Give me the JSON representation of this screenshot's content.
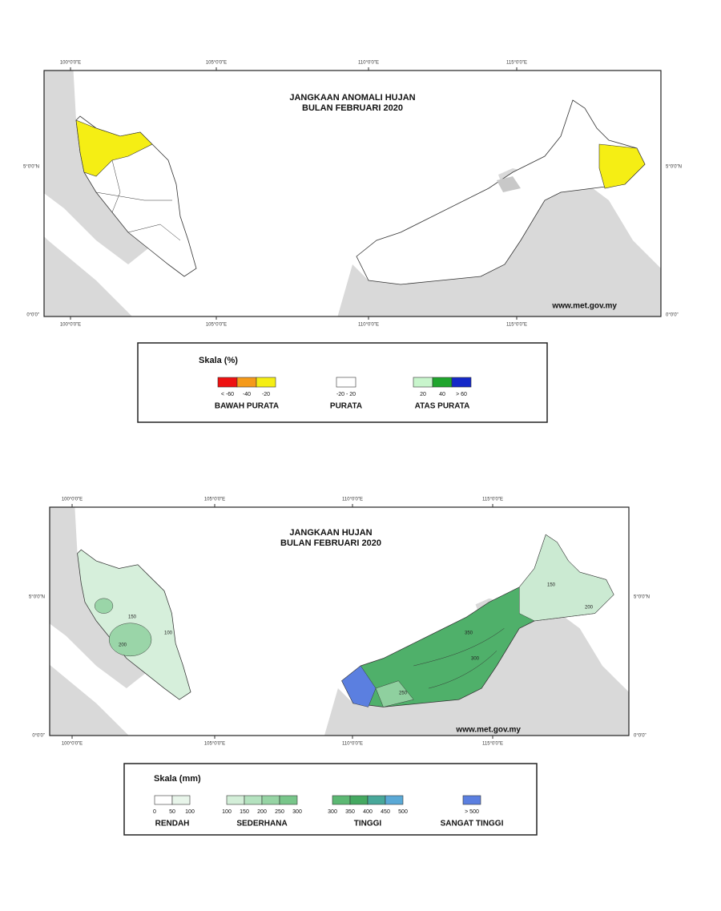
{
  "maps": [
    {
      "title": [
        "JANGKAAN ANOMALI HUJAN",
        "BULAN FEBRUARI 2020"
      ],
      "url": "www.met.gov.my",
      "lon_labels": [
        "100°0'0\"E",
        "105°0'0\"E",
        "110°0'0\"E",
        "115°0'0\"E"
      ],
      "lat_labels": [
        "5°0'0\"N",
        "0°0'0\""
      ],
      "legend": {
        "title": "Skala (%)",
        "groups": [
          {
            "name": "BAWAH PURATA",
            "colors": [
              "#ee1111",
              "#f59a1a",
              "#f5ee14"
            ],
            "labels": [
              "< -60",
              "-40",
              "-20"
            ]
          },
          {
            "name": "PURATA",
            "colors": [
              "#ffffff"
            ],
            "labels": [
              "-20 - 20"
            ]
          },
          {
            "name": "ATAS PURATA",
            "colors": [
              "#c8f5cc",
              "#1fa52d",
              "#1428c8"
            ],
            "labels": [
              "20",
              "40",
              "> 60"
            ]
          }
        ]
      }
    },
    {
      "title": [
        "JANGKAAN HUJAN",
        "BULAN FEBRUARI 2020"
      ],
      "url": "www.met.gov.my",
      "lon_labels": [
        "100°0'0\"E",
        "105°0'0\"E",
        "110°0'0\"E",
        "115°0'0\"E"
      ],
      "lat_labels": [
        "5°0'0\"N",
        "0°0'0\""
      ],
      "contour_labels": [
        "100",
        "150",
        "200",
        "250",
        "300",
        "350",
        "150",
        "200"
      ],
      "legend": {
        "title": "Skala (mm)",
        "groups": [
          {
            "name": "RENDAH",
            "colors": [
              "#ffffff",
              "#e8f5ea"
            ],
            "labels": [
              "0",
              "50",
              "100"
            ]
          },
          {
            "name": "SEDERHANA",
            "colors": [
              "#d3eed8",
              "#b4e2bf",
              "#96d4a4",
              "#78c68a"
            ],
            "labels": [
              "100",
              "150",
              "200",
              "250",
              "300"
            ]
          },
          {
            "name": "TINGGI",
            "colors": [
              "#5cb873",
              "#45a961",
              "#48a89a",
              "#5aa9d6"
            ],
            "labels": [
              "300",
              "350",
              "400",
              "450",
              "500"
            ]
          },
          {
            "name": "SANGAT TINGGI",
            "colors": [
              "#5b7fe0"
            ],
            "labels": [
              "> 500"
            ]
          }
        ]
      }
    }
  ]
}
